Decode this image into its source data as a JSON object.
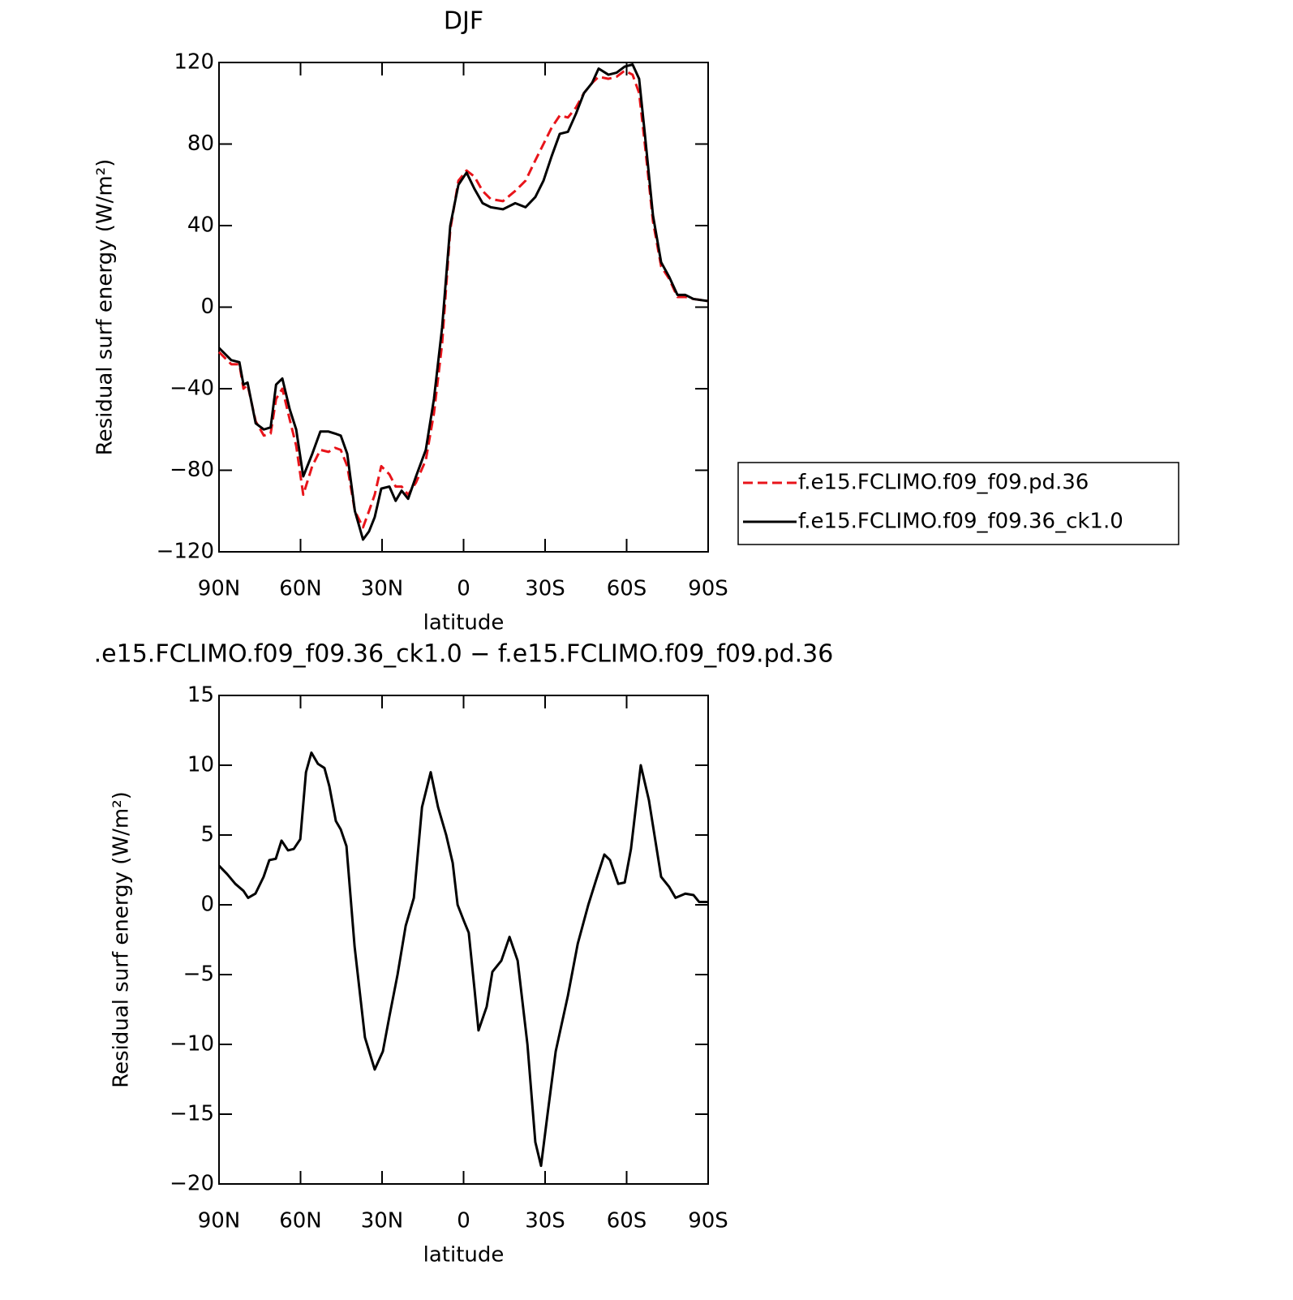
{
  "chart_data": [
    {
      "type": "line",
      "title": "DJF",
      "xlabel": "latitude",
      "ylabel": "Residual surf energy (W/m²)",
      "xlim": [
        90,
        -90
      ],
      "xticks": [
        {
          "value": 90,
          "label": "90N"
        },
        {
          "value": 60,
          "label": "60N"
        },
        {
          "value": 30,
          "label": "30N"
        },
        0,
        {
          "value": -30,
          "label": "30S"
        },
        {
          "value": -60,
          "label": "60S"
        },
        {
          "value": -90,
          "label": "90S"
        }
      ],
      "ylim": [
        -120,
        120
      ],
      "yticks": [
        {
          "value": -120,
          "label": "−120"
        },
        {
          "value": -80,
          "label": "−80"
        },
        {
          "value": -40,
          "label": "−40"
        },
        0,
        40,
        80,
        120
      ],
      "legend": "right",
      "x": [
        90,
        85.5,
        82.5,
        81,
        79.5,
        76.5,
        73.5,
        71,
        69,
        66.7,
        64,
        61.6,
        59,
        55.7,
        52.7,
        49.7,
        47.3,
        45.2,
        42.8,
        40,
        37,
        34.8,
        32.7,
        30.3,
        27.3,
        25,
        22.8,
        20.4,
        17.5,
        13.9,
        10.9,
        7.9,
        4.9,
        1.9,
        -1.1,
        -4,
        -7,
        -10,
        -14.5,
        -19,
        -22.8,
        -26.4,
        -29.4,
        -32.4,
        -35.4,
        -38.4,
        -41.4,
        -44.3,
        -47.3,
        -49.7,
        -53.3,
        -56.3,
        -59.3,
        -62.2,
        -64.6,
        -66.7,
        -69.7,
        -72.7,
        -75.6,
        -78.7,
        -81.6,
        -84.6,
        -90
      ],
      "series": [
        {
          "name": "f.e15.FCLIMO.f09_f09.pd.36",
          "color": "#e8141a",
          "dash": true,
          "values": [
            -22,
            -28,
            -28,
            -40,
            -38,
            -56,
            -63,
            -62,
            -45,
            -40,
            -55,
            -68,
            -92,
            -78,
            -70,
            -71,
            -69,
            -70,
            -78,
            -100,
            -108,
            -100,
            -92,
            -78,
            -82,
            -88,
            -88,
            -92,
            -86,
            -75,
            -52,
            -18,
            38,
            62,
            67,
            64,
            57,
            53,
            52,
            57,
            62,
            72,
            80,
            88,
            94,
            93,
            98,
            105,
            110,
            113,
            112,
            113,
            116,
            114,
            105,
            80,
            42,
            20,
            14,
            5,
            5,
            4,
            3
          ]
        },
        {
          "name": "f.e15.FCLIMO.f09_f09.36_ck1.0",
          "color": "#000000",
          "dash": false,
          "values": [
            -20,
            -26,
            -27,
            -38,
            -37,
            -57,
            -60,
            -59,
            -38,
            -35,
            -50,
            -60,
            -83,
            -72,
            -61,
            -61,
            -62,
            -63,
            -72,
            -100,
            -114,
            -110,
            -103,
            -89,
            -88,
            -95,
            -90,
            -94,
            -83,
            -70,
            -45,
            -10,
            40,
            60,
            66,
            58,
            51,
            49,
            48,
            51,
            49,
            54,
            62,
            74,
            85,
            86,
            95,
            105,
            110,
            117,
            114,
            115,
            118,
            119,
            112,
            85,
            45,
            22,
            15,
            6,
            6,
            4,
            3
          ]
        }
      ]
    },
    {
      "type": "line",
      "title": ".e15.FCLIMO.f09_f09.36_ck1.0 − f.e15.FCLIMO.f09_f09.pd.36",
      "xlabel": "latitude",
      "ylabel": "Residual surf energy (W/m²)",
      "xlim": [
        90,
        -90
      ],
      "xticks": [
        {
          "value": 90,
          "label": "90N"
        },
        {
          "value": 60,
          "label": "60N"
        },
        {
          "value": 30,
          "label": "30N"
        },
        0,
        {
          "value": -30,
          "label": "30S"
        },
        {
          "value": -60,
          "label": "60S"
        },
        {
          "value": -90,
          "label": "90S"
        }
      ],
      "ylim": [
        -20,
        15
      ],
      "yticks": [
        {
          "value": -20,
          "label": "−20"
        },
        {
          "value": -15,
          "label": "−15"
        },
        {
          "value": -10,
          "label": "−10"
        },
        {
          "value": -5,
          "label": "−5"
        },
        0,
        5,
        10,
        15
      ],
      "x": [
        90,
        87,
        84,
        81,
        79.3,
        76.6,
        73.6,
        71.5,
        69.1,
        67,
        64.6,
        62.5,
        60.1,
        58,
        56,
        53.6,
        51.2,
        49.4,
        47,
        45.2,
        43.1,
        40.1,
        36.3,
        32.7,
        29.7,
        27.3,
        24.3,
        21.3,
        18.3,
        15.3,
        12.1,
        9.4,
        6.4,
        4,
        2.2,
        -0.2,
        -1.9,
        -4,
        -5.5,
        -8.5,
        -10.6,
        -13.9,
        -16.9,
        -19.9,
        -23.5,
        -26.4,
        -28.5,
        -30.9,
        -33.9,
        -38.4,
        -42,
        -45.9,
        -48.8,
        -51.8,
        -53.9,
        -56.9,
        -59.3,
        -61.6,
        -65.2,
        -68.2,
        -72.7,
        -75.6,
        -78,
        -81.6,
        -84.6,
        -86.7,
        -90
      ],
      "series": [
        {
          "color": "#000000",
          "dash": false,
          "values": [
            2.8,
            2.2,
            1.5,
            1.0,
            0.5,
            0.8,
            2,
            3.2,
            3.3,
            4.6,
            3.9,
            4,
            4.7,
            9.5,
            10.9,
            10.1,
            9.8,
            8.5,
            6,
            5.4,
            4.2,
            -3,
            -9.5,
            -11.8,
            -10.5,
            -8,
            -5,
            -1.5,
            0.5,
            7,
            9.5,
            7,
            5,
            3,
            0,
            -1.2,
            -2,
            -6,
            -9,
            -7.3,
            -4.8,
            -4,
            -2.3,
            -4,
            -10,
            -17,
            -18.7,
            -15,
            -10.5,
            -6.5,
            -2.8,
            0,
            1.8,
            3.6,
            3.2,
            1.5,
            1.6,
            4,
            10,
            7.5,
            2,
            1.3,
            0.5,
            0.8,
            0.7,
            0.2,
            0.2
          ]
        }
      ]
    }
  ]
}
